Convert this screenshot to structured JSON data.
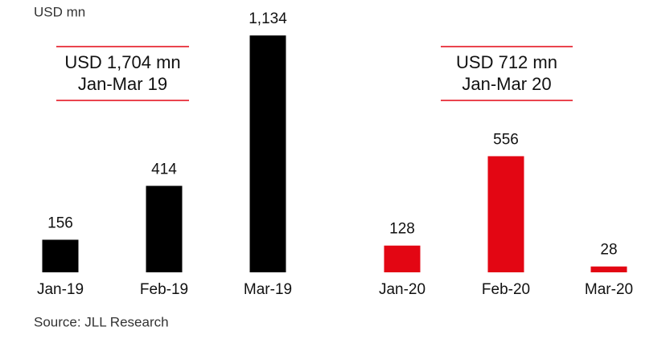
{
  "chart_data": {
    "type": "bar",
    "y_label": "USD mn",
    "categories": [
      "Jan-19",
      "Feb-19",
      "Mar-19",
      "Jan-20",
      "Feb-20",
      "Mar-20"
    ],
    "values": [
      156,
      414,
      1134,
      128,
      556,
      28
    ],
    "value_labels": [
      "156",
      "414",
      "1,134",
      "128",
      "556",
      "28"
    ],
    "colors": [
      "#000000",
      "#000000",
      "#000000",
      "#e30613",
      "#e30613",
      "#e30613"
    ],
    "ylim": [
      0,
      1200
    ],
    "annotations": [
      {
        "lines": [
          "USD 1,704 mn",
          "Jan-Mar 19"
        ]
      },
      {
        "lines": [
          "USD 712 mn",
          "Jan-Mar 20"
        ]
      }
    ],
    "source": "Source: JLL Research"
  }
}
